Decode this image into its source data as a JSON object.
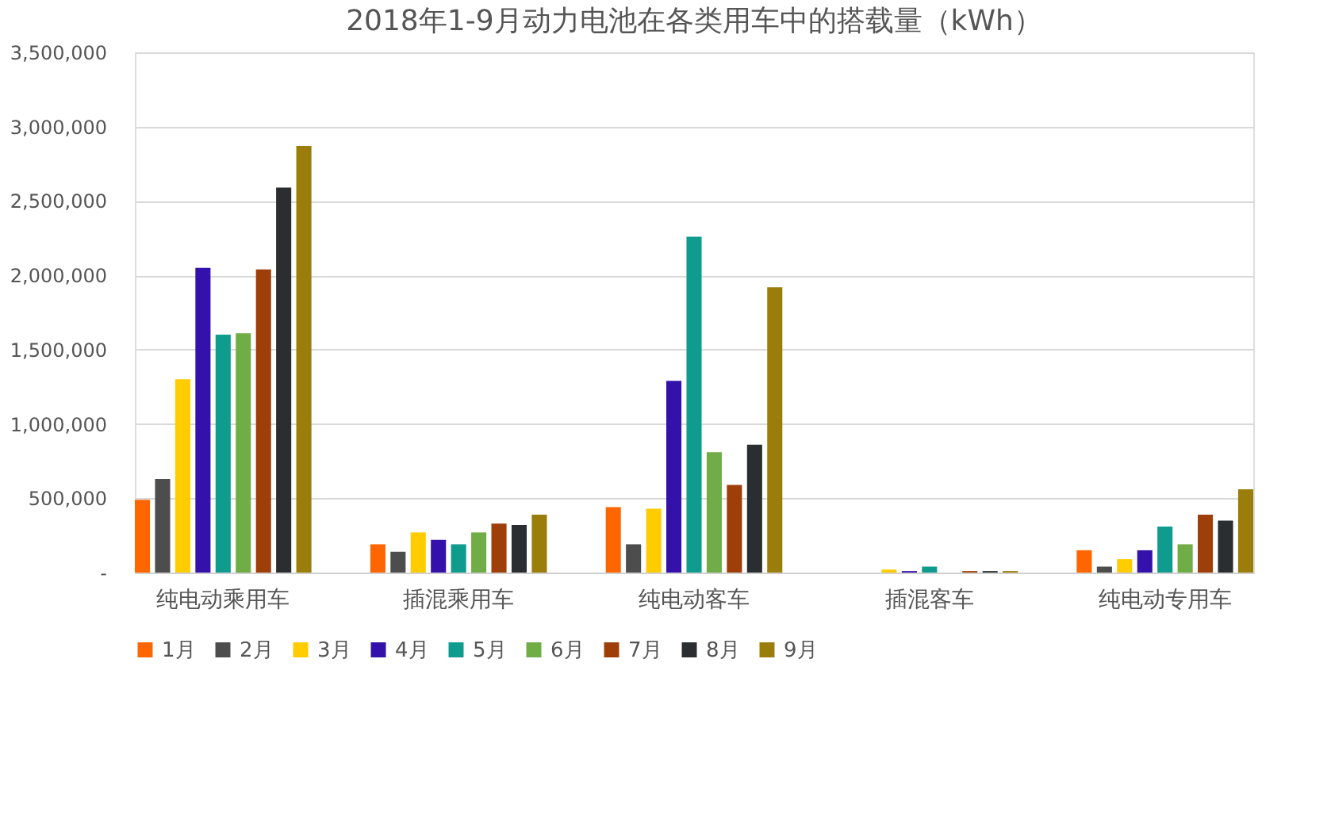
{
  "chart_data": {
    "type": "bar",
    "title": "2018年1-9月动力电池在各类用车中的搭载量（kWh）",
    "categories": [
      "纯电动乘用车",
      "插混乘用车",
      "纯电动客车",
      "插混客车",
      "纯电动专用车"
    ],
    "series": [
      {
        "name": "1月",
        "color": "#ff6600",
        "values": [
          490000,
          190000,
          440000,
          0,
          150000
        ]
      },
      {
        "name": "2月",
        "color": "#4d4d4d",
        "values": [
          630000,
          140000,
          190000,
          0,
          40000
        ]
      },
      {
        "name": "3月",
        "color": "#ffcc00",
        "values": [
          1300000,
          270000,
          430000,
          20000,
          90000
        ]
      },
      {
        "name": "4月",
        "color": "#3311aa",
        "values": [
          2050000,
          220000,
          1290000,
          10000,
          150000
        ]
      },
      {
        "name": "5月",
        "color": "#0f9b8e",
        "values": [
          1600000,
          190000,
          2260000,
          40000,
          310000
        ]
      },
      {
        "name": "6月",
        "color": "#70ad47",
        "values": [
          1610000,
          270000,
          810000,
          0,
          190000
        ]
      },
      {
        "name": "7月",
        "color": "#9e3f0a",
        "values": [
          2040000,
          330000,
          590000,
          10000,
          390000
        ]
      },
      {
        "name": "8月",
        "color": "#2a2e30",
        "values": [
          2590000,
          320000,
          860000,
          10000,
          350000
        ]
      },
      {
        "name": "9月",
        "color": "#9a7d0a",
        "values": [
          2870000,
          390000,
          1920000,
          10000,
          560000
        ]
      }
    ],
    "ylim": [
      0,
      3500000
    ],
    "yticks": [
      {
        "value": 0,
        "label": "-"
      },
      {
        "value": 500000,
        "label": "500,000"
      },
      {
        "value": 1000000,
        "label": "1,000,000"
      },
      {
        "value": 1500000,
        "label": "1,500,000"
      },
      {
        "value": 2000000,
        "label": "2,000,000"
      },
      {
        "value": 2500000,
        "label": "2,500,000"
      },
      {
        "value": 3000000,
        "label": "3,000,000"
      },
      {
        "value": 3500000,
        "label": "3,500,000"
      }
    ],
    "grid": "y",
    "legend": "bottom"
  }
}
